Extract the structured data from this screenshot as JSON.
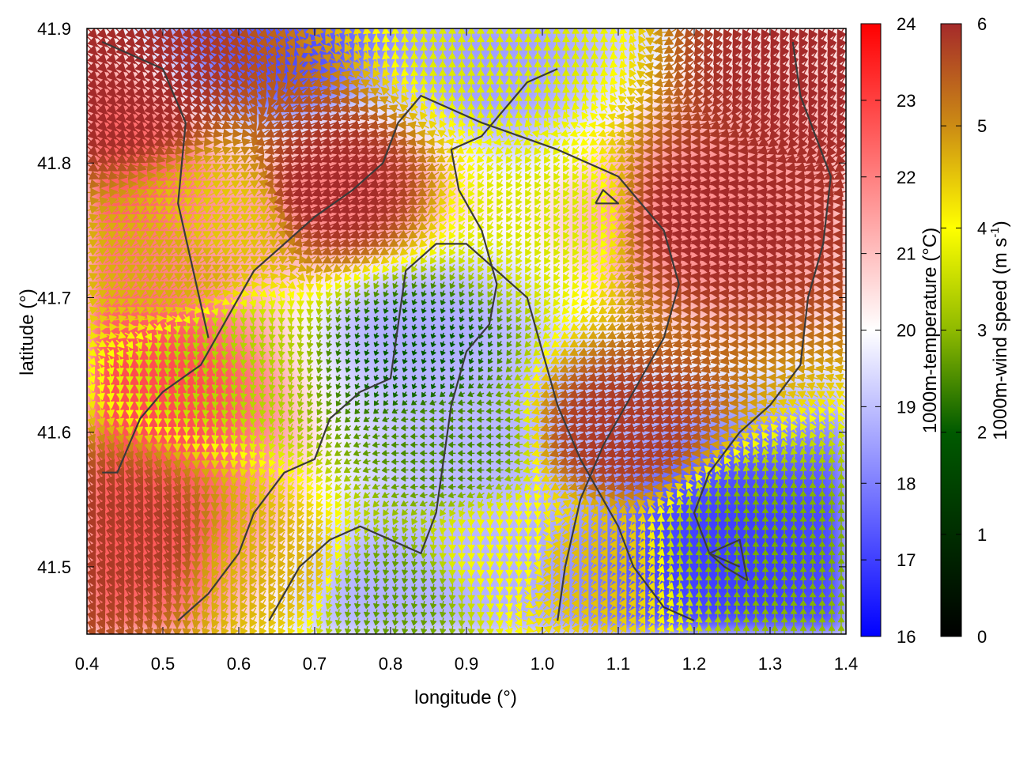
{
  "chart_data": {
    "type": "heatmap",
    "title": "",
    "xlabel": "longitude (°)",
    "ylabel": "latitude (°)",
    "xlim": [
      0.4,
      1.4
    ],
    "ylim": [
      41.45,
      41.9
    ],
    "xticks": [
      "0.4",
      "0.5",
      "0.6",
      "0.7",
      "0.8",
      "0.9",
      "1.0",
      "1.1",
      "1.2",
      "1.3",
      "1.4"
    ],
    "yticks": [
      "41.5",
      "41.6",
      "41.7",
      "41.8",
      "41.9"
    ],
    "temperature_colorbar": {
      "label": "1000m-temperature (°C)",
      "range": [
        16,
        24
      ],
      "ticks": [
        "16",
        "17",
        "18",
        "19",
        "20",
        "21",
        "22",
        "23",
        "24"
      ],
      "colors": [
        "#0000ff",
        "#ffffff",
        "#ff0000"
      ]
    },
    "wind_colorbar": {
      "label_main": "1000m-wind speed (m s",
      "label_sup": "-1",
      "label_end": ")",
      "range": [
        0,
        6
      ],
      "ticks": [
        "0",
        "1",
        "2",
        "3",
        "4",
        "5",
        "6"
      ],
      "colors": [
        "#000000",
        "#005a00",
        "#8fba00",
        "#ffff00",
        "#cc8c14",
        "#a52a2a"
      ]
    },
    "temperature_blobs": [
      {
        "lon": 0.66,
        "lat": 41.88,
        "t": 17.2
      },
      {
        "lon": 0.92,
        "lat": 41.87,
        "t": 18.5
      },
      {
        "lon": 0.84,
        "lat": 41.68,
        "t": 18.7
      },
      {
        "lon": 0.82,
        "lat": 41.48,
        "t": 18.8
      },
      {
        "lon": 1.25,
        "lat": 41.51,
        "t": 17.0
      },
      {
        "lon": 0.93,
        "lat": 41.6,
        "t": 18.9
      },
      {
        "lon": 0.5,
        "lat": 41.63,
        "t": 22.8
      },
      {
        "lon": 0.46,
        "lat": 41.53,
        "t": 22.6
      },
      {
        "lon": 0.44,
        "lat": 41.8,
        "t": 22.5
      },
      {
        "lon": 0.75,
        "lat": 41.78,
        "t": 22.0
      },
      {
        "lon": 1.2,
        "lat": 41.76,
        "t": 21.8
      }
    ],
    "wind_zones": [
      {
        "lon": 0.45,
        "lat": 41.85,
        "speed": 6.0,
        "dir": 315
      },
      {
        "lon": 0.44,
        "lat": 41.52,
        "speed": 5.8,
        "dir": 300
      },
      {
        "lon": 0.72,
        "lat": 41.78,
        "speed": 6.0,
        "dir": 200
      },
      {
        "lon": 1.22,
        "lat": 41.76,
        "speed": 6.0,
        "dir": 170
      },
      {
        "lon": 1.1,
        "lat": 41.6,
        "speed": 5.8,
        "dir": 200
      },
      {
        "lon": 0.95,
        "lat": 41.88,
        "speed": 3.2,
        "dir": 90
      },
      {
        "lon": 0.83,
        "lat": 41.66,
        "speed": 1.2,
        "dir": 250
      },
      {
        "lon": 0.88,
        "lat": 41.59,
        "speed": 1.8,
        "dir": 180
      },
      {
        "lon": 0.8,
        "lat": 41.48,
        "speed": 2.0,
        "dir": 260
      },
      {
        "lon": 1.27,
        "lat": 41.52,
        "speed": 2.2,
        "dir": 90
      },
      {
        "lon": 0.58,
        "lat": 41.66,
        "speed": 2.8,
        "dir": 260
      },
      {
        "lon": 0.58,
        "lat": 41.76,
        "speed": 4.2,
        "dir": 30
      },
      {
        "lon": 1.0,
        "lat": 41.76,
        "speed": 3.2,
        "dir": 240
      },
      {
        "lon": 1.05,
        "lat": 41.5,
        "speed": 4.3,
        "dir": 60
      },
      {
        "lon": 0.95,
        "lat": 41.51,
        "speed": 3.5,
        "dir": 270
      },
      {
        "lon": 0.65,
        "lat": 41.5,
        "speed": 4.4,
        "dir": 240
      },
      {
        "lon": 1.35,
        "lat": 41.87,
        "speed": 6.0,
        "dir": 240
      },
      {
        "lon": 0.52,
        "lat": 41.72,
        "speed": 4.5,
        "dir": 30
      }
    ],
    "contours": [
      [
        [
          0.42,
          41.57
        ],
        [
          0.44,
          41.57
        ],
        [
          0.47,
          41.61
        ],
        [
          0.5,
          41.63
        ],
        [
          0.55,
          41.65
        ],
        [
          0.58,
          41.68
        ],
        [
          0.6,
          41.7
        ],
        [
          0.62,
          41.72
        ],
        [
          0.66,
          41.74
        ],
        [
          0.7,
          41.76
        ],
        [
          0.75,
          41.78
        ],
        [
          0.79,
          41.8
        ],
        [
          0.81,
          41.83
        ],
        [
          0.84,
          41.85
        ],
        [
          0.88,
          41.84
        ],
        [
          0.92,
          41.83
        ],
        [
          0.97,
          41.82
        ],
        [
          1.02,
          41.81
        ],
        [
          1.06,
          41.8
        ],
        [
          1.1,
          41.79
        ],
        [
          1.13,
          41.77
        ],
        [
          1.16,
          41.75
        ],
        [
          1.18,
          41.71
        ],
        [
          1.16,
          41.67
        ],
        [
          1.12,
          41.63
        ],
        [
          1.08,
          41.59
        ],
        [
          1.05,
          41.55
        ],
        [
          1.03,
          41.5
        ],
        [
          1.02,
          41.46
        ]
      ],
      [
        [
          0.52,
          41.46
        ],
        [
          0.56,
          41.48
        ],
        [
          0.6,
          41.51
        ],
        [
          0.62,
          41.54
        ],
        [
          0.66,
          41.57
        ],
        [
          0.7,
          41.58
        ],
        [
          0.72,
          41.61
        ],
        [
          0.76,
          41.63
        ],
        [
          0.8,
          41.64
        ],
        [
          0.81,
          41.68
        ],
        [
          0.82,
          41.72
        ],
        [
          0.86,
          41.74
        ],
        [
          0.9,
          41.74
        ],
        [
          0.94,
          41.72
        ],
        [
          0.98,
          41.7
        ],
        [
          1.0,
          41.66
        ],
        [
          1.02,
          41.62
        ],
        [
          1.05,
          41.58
        ],
        [
          1.08,
          41.55
        ],
        [
          1.1,
          41.53
        ],
        [
          1.12,
          41.5
        ],
        [
          1.16,
          41.47
        ],
        [
          1.2,
          41.46
        ]
      ],
      [
        [
          0.64,
          41.46
        ],
        [
          0.68,
          41.5
        ],
        [
          0.72,
          41.52
        ],
        [
          0.76,
          41.53
        ],
        [
          0.8,
          41.52
        ],
        [
          0.84,
          41.51
        ],
        [
          0.86,
          41.54
        ],
        [
          0.87,
          41.58
        ],
        [
          0.88,
          41.62
        ],
        [
          0.9,
          41.66
        ],
        [
          0.93,
          41.68
        ],
        [
          0.94,
          41.71
        ],
        [
          0.92,
          41.75
        ],
        [
          0.89,
          41.78
        ],
        [
          0.88,
          41.81
        ],
        [
          0.92,
          41.82
        ],
        [
          0.95,
          41.84
        ],
        [
          0.98,
          41.86
        ],
        [
          1.02,
          41.87
        ]
      ],
      [
        [
          0.56,
          41.67
        ],
        [
          0.54,
          41.72
        ],
        [
          0.52,
          41.77
        ],
        [
          0.53,
          41.83
        ],
        [
          0.5,
          41.87
        ],
        [
          0.46,
          41.88
        ],
        [
          0.42,
          41.89
        ]
      ],
      [
        [
          1.33,
          41.89
        ],
        [
          1.34,
          41.85
        ],
        [
          1.36,
          41.82
        ],
        [
          1.38,
          41.79
        ],
        [
          1.37,
          41.74
        ],
        [
          1.35,
          41.7
        ],
        [
          1.34,
          41.65
        ],
        [
          1.3,
          41.62
        ],
        [
          1.26,
          41.6
        ],
        [
          1.22,
          41.57
        ],
        [
          1.2,
          41.54
        ],
        [
          1.22,
          41.51
        ],
        [
          1.26,
          41.5
        ]
      ],
      [
        [
          1.07,
          41.77
        ],
        [
          1.1,
          41.77
        ],
        [
          1.08,
          41.78
        ],
        [
          1.07,
          41.77
        ]
      ],
      [
        [
          1.22,
          41.51
        ],
        [
          1.26,
          41.52
        ],
        [
          1.27,
          41.49
        ],
        [
          1.24,
          41.5
        ],
        [
          1.22,
          41.51
        ]
      ]
    ]
  }
}
